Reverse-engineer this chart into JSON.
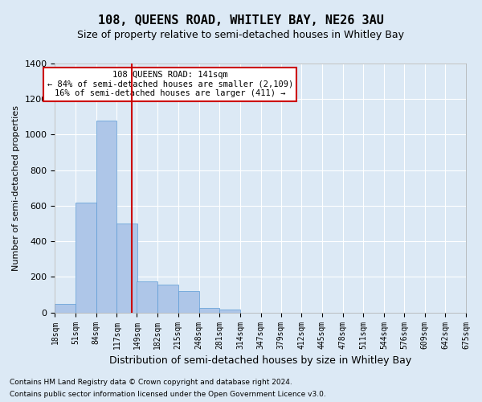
{
  "title": "108, QUEENS ROAD, WHITLEY BAY, NE26 3AU",
  "subtitle": "Size of property relative to semi-detached houses in Whitley Bay",
  "xlabel": "Distribution of semi-detached houses by size in Whitley Bay",
  "ylabel": "Number of semi-detached properties",
  "footnote1": "Contains HM Land Registry data © Crown copyright and database right 2024.",
  "footnote2": "Contains public sector information licensed under the Open Government Licence v3.0.",
  "property_size": 141,
  "annotation_line1": "108 QUEENS ROAD: 141sqm",
  "annotation_line2": "← 84% of semi-detached houses are smaller (2,109)",
  "annotation_line3": "16% of semi-detached houses are larger (411) →",
  "bin_edges": [
    18,
    51,
    84,
    117,
    149,
    182,
    215,
    248,
    281,
    314,
    347,
    379,
    412,
    445,
    478,
    511,
    544,
    576,
    609,
    642,
    675
  ],
  "bin_labels": [
    "18sqm",
    "51sqm",
    "84sqm",
    "117sqm",
    "149sqm",
    "182sqm",
    "215sqm",
    "248sqm",
    "281sqm",
    "314sqm",
    "347sqm",
    "379sqm",
    "412sqm",
    "445sqm",
    "478sqm",
    "511sqm",
    "544sqm",
    "576sqm",
    "609sqm",
    "642sqm",
    "675sqm"
  ],
  "bar_values": [
    50,
    620,
    1080,
    500,
    175,
    155,
    120,
    25,
    15,
    0,
    0,
    0,
    0,
    0,
    0,
    0,
    0,
    0,
    0,
    0
  ],
  "bar_color": "#aec6e8",
  "bar_edge_color": "#5b9bd5",
  "vline_x": 141,
  "vline_color": "#cc0000",
  "ylim": [
    0,
    1400
  ],
  "yticks": [
    0,
    200,
    400,
    600,
    800,
    1000,
    1200,
    1400
  ],
  "bg_color": "#dce9f5",
  "ax_bg_color": "#dce9f5",
  "grid_color": "#ffffff",
  "annotation_box_color": "#ffffff",
  "annotation_box_edge": "#cc0000",
  "fig_width": 6.0,
  "fig_height": 5.0,
  "title_fontsize": 11,
  "subtitle_fontsize": 9
}
